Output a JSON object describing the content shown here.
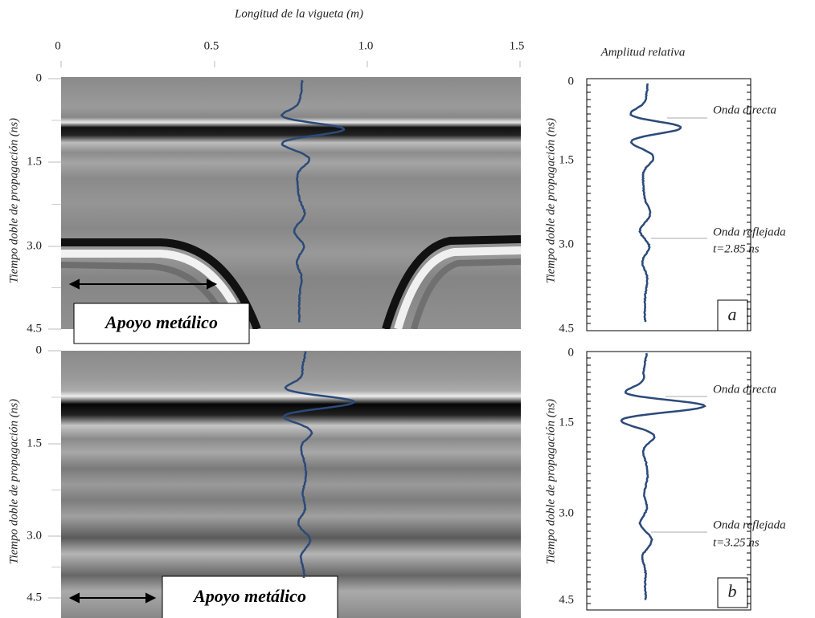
{
  "figure": {
    "x_axis": {
      "title": "Longitud de la vigueta (m)",
      "ticks": [
        "0",
        "0.5",
        "1.0",
        "1.5"
      ]
    },
    "amplitude_title": "Amplitud relativa",
    "panels": [
      {
        "y_label": "Tiempo doble de propagación (ns)",
        "y_ticks": [
          "0",
          "1.5",
          "3.0",
          "4.5"
        ],
        "support_label": "Apoyo metálico",
        "trace_y_label": "Tiempo doble de propagación (ns)",
        "trace_y_ticks": [
          "0",
          "1.5",
          "3.0",
          "4.5"
        ],
        "direct_wave": "Onda directa",
        "reflected_wave": "Onda reflejada",
        "reflected_time": "t=2.85 ns",
        "letter": "a"
      },
      {
        "y_label": "Tiempo doble de propagación (ns)",
        "y_ticks": [
          "0",
          "1.5",
          "3.0",
          "4.5"
        ],
        "support_label": "Apoyo metálico",
        "trace_y_label": "Tiempo doble de propagación (ns)",
        "trace_y_ticks": [
          "0",
          "1.5",
          "3.0",
          "4.5"
        ],
        "direct_wave": "Onda directa",
        "reflected_wave": "Onda reflejada",
        "reflected_time": "t=3.25 ns",
        "letter": "b"
      }
    ]
  }
}
